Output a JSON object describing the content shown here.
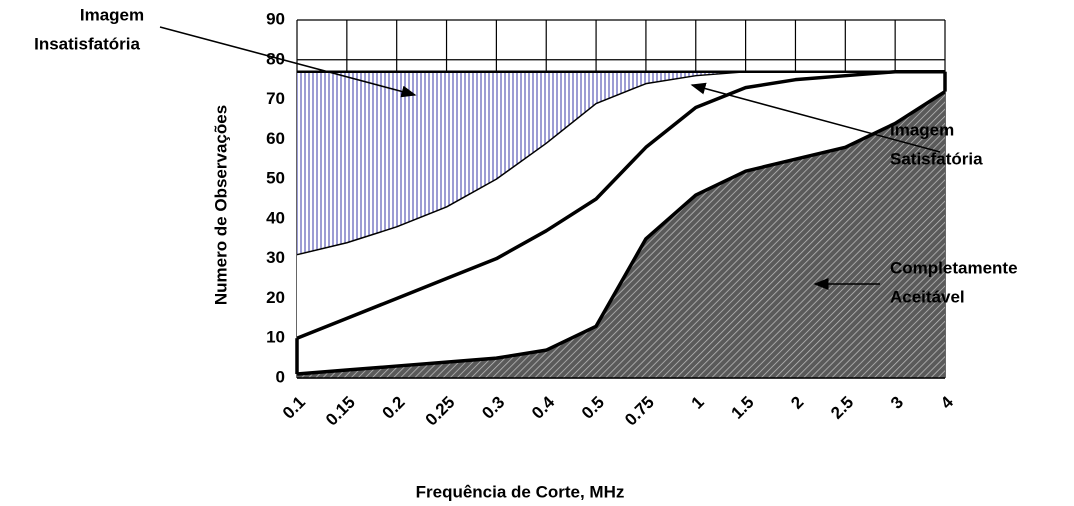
{
  "chart_data": {
    "type": "area",
    "xlabel": "Frequência de Corte, MHz",
    "ylabel": "Numero de Observações",
    "categories": [
      "0.1",
      "0.15",
      "0.2",
      "0.25",
      "0.3",
      "0.4",
      "0.5",
      "0.75",
      "1",
      "1.5",
      "2",
      "2.5",
      "3",
      "4"
    ],
    "series": [
      {
        "color": "#000000",
        "fill": "hatch",
        "values": [
          1,
          2,
          3,
          4,
          5,
          7,
          13,
          35,
          46,
          52,
          55,
          58,
          64,
          72
        ]
      },
      {
        "color": "#000000",
        "fill": "#ffffff",
        "values": [
          10,
          15,
          20,
          25,
          30,
          37,
          45,
          58,
          68,
          73,
          75,
          76,
          77,
          77
        ]
      },
      {
        "color": "#000000",
        "fill": "#ffffff",
        "values": [
          31,
          34,
          38,
          43,
          50,
          59,
          69,
          74,
          76,
          77,
          77,
          77,
          77,
          77
        ]
      },
      {
        "color": "#000000",
        "fill": "stripes",
        "values": [
          77,
          77,
          77,
          77,
          77,
          77,
          77,
          77,
          77,
          77,
          77,
          77,
          77,
          77
        ]
      }
    ],
    "ylim": [
      0,
      90
    ],
    "yticks": [
      0,
      10,
      20,
      30,
      40,
      50,
      60,
      70,
      80,
      90
    ],
    "grid": true,
    "annotations": [
      {
        "lines": [
          "Imagem",
          "Insatisfatória"
        ]
      },
      {
        "lines": [
          "Imagem",
          "Satisfatória"
        ]
      },
      {
        "lines": [
          "Completamente",
          "Aceitável"
        ]
      }
    ]
  }
}
